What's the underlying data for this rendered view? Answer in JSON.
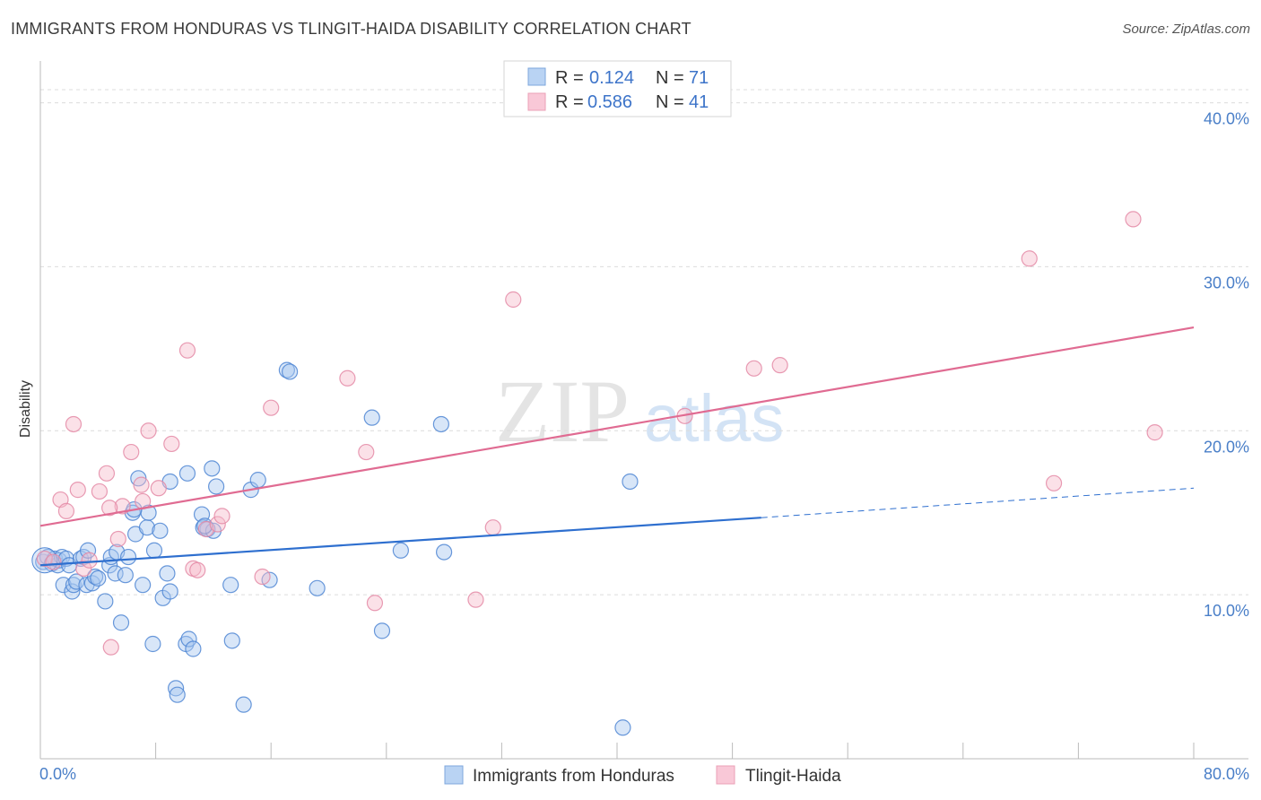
{
  "header": {
    "title": "IMMIGRANTS FROM HONDURAS VS TLINGIT-HAIDA DISABILITY CORRELATION CHART",
    "source": "Source: ZipAtlas.com"
  },
  "watermark": {
    "zip": "ZIP",
    "atlas": "atlas"
  },
  "colors": {
    "series1_fill": "#a9c8f0",
    "series1_stroke": "#4f86d4",
    "series1_line": "#2e6fcf",
    "series2_fill": "#f7bccd",
    "series2_stroke": "#e48aa6",
    "series2_line": "#e06b92",
    "tick_label": "#4a7fc8",
    "grid": "#dcdcdc"
  },
  "legend": {
    "rows": [
      {
        "r_label": "R =",
        "r_value": "0.124",
        "n_label": "N =",
        "n_value": "71"
      },
      {
        "r_label": "R =",
        "r_value": "0.586",
        "n_label": "N =",
        "n_value": "41"
      }
    ]
  },
  "bottom_legend": {
    "series1": "Immigrants from Honduras",
    "series2": "Tlingit-Haida"
  },
  "chart_data": {
    "type": "scatter",
    "title": "IMMIGRANTS FROM HONDURAS VS TLINGIT-HAIDA DISABILITY CORRELATION CHART",
    "xlabel": "",
    "ylabel": "Disability",
    "xlim": [
      0,
      80
    ],
    "ylim": [
      0,
      42
    ],
    "x_tick_labels": [
      "0.0%",
      "80.0%"
    ],
    "y_ticks": [
      10,
      20,
      30,
      40
    ],
    "y_tick_labels": [
      "10.0%",
      "20.0%",
      "30.0%",
      "40.0%"
    ],
    "grid": true,
    "legend_position": "top-center",
    "series": [
      {
        "name": "Immigrants from Honduras",
        "r": 0.124,
        "n": 71,
        "trend": {
          "x0": 0,
          "y0": 11.8,
          "x1": 50,
          "y1": 14.7,
          "dashed_to_x": 80,
          "dashed_to_y": 16.5
        },
        "points": [
          [
            0.2,
            12.0
          ],
          [
            0.5,
            12.3
          ],
          [
            0.8,
            11.9
          ],
          [
            1.0,
            12.2
          ],
          [
            1.2,
            11.8
          ],
          [
            1.3,
            12.1
          ],
          [
            1.5,
            12.3
          ],
          [
            1.6,
            10.6
          ],
          [
            1.8,
            12.2
          ],
          [
            2.0,
            11.8
          ],
          [
            2.2,
            10.2
          ],
          [
            2.3,
            10.6
          ],
          [
            2.5,
            10.8
          ],
          [
            2.8,
            12.2
          ],
          [
            3.0,
            12.3
          ],
          [
            3.2,
            10.6
          ],
          [
            3.3,
            12.7
          ],
          [
            3.6,
            10.7
          ],
          [
            3.8,
            11.1
          ],
          [
            4.0,
            11.0
          ],
          [
            4.5,
            9.6
          ],
          [
            4.8,
            11.8
          ],
          [
            4.9,
            12.3
          ],
          [
            5.2,
            11.3
          ],
          [
            5.3,
            12.6
          ],
          [
            5.6,
            8.3
          ],
          [
            5.9,
            11.2
          ],
          [
            6.1,
            12.3
          ],
          [
            6.4,
            15.0
          ],
          [
            6.6,
            13.7
          ],
          [
            6.8,
            17.1
          ],
          [
            7.1,
            10.6
          ],
          [
            7.4,
            14.1
          ],
          [
            7.5,
            15.0
          ],
          [
            7.8,
            7.0
          ],
          [
            7.9,
            12.7
          ],
          [
            8.3,
            13.9
          ],
          [
            8.5,
            9.8
          ],
          [
            8.8,
            11.3
          ],
          [
            9.0,
            10.2
          ],
          [
            9.0,
            16.9
          ],
          [
            9.4,
            4.3
          ],
          [
            9.5,
            3.9
          ],
          [
            10.1,
            7.0
          ],
          [
            10.2,
            17.4
          ],
          [
            10.3,
            7.3
          ],
          [
            10.6,
            6.7
          ],
          [
            11.2,
            14.9
          ],
          [
            11.3,
            14.1
          ],
          [
            11.6,
            14.0
          ],
          [
            11.9,
            17.7
          ],
          [
            12.0,
            13.9
          ],
          [
            12.2,
            16.6
          ],
          [
            13.2,
            10.6
          ],
          [
            13.3,
            7.2
          ],
          [
            14.1,
            3.3
          ],
          [
            14.6,
            16.4
          ],
          [
            15.1,
            17.0
          ],
          [
            15.9,
            10.9
          ],
          [
            17.1,
            23.7
          ],
          [
            17.3,
            23.6
          ],
          [
            19.2,
            10.4
          ],
          [
            23.0,
            20.8
          ],
          [
            23.7,
            7.8
          ],
          [
            25.0,
            12.7
          ],
          [
            27.8,
            20.4
          ],
          [
            28.0,
            12.6
          ],
          [
            40.9,
            16.9
          ],
          [
            40.4,
            1.9
          ],
          [
            11.4,
            14.2
          ],
          [
            6.5,
            15.2
          ]
        ]
      },
      {
        "name": "Tlingit-Haida",
        "r": 0.586,
        "n": 41,
        "trend": {
          "x0": 0,
          "y0": 14.2,
          "x1": 80,
          "y1": 26.3
        },
        "points": [
          [
            0.3,
            12.2
          ],
          [
            0.9,
            12.0
          ],
          [
            1.4,
            15.8
          ],
          [
            1.8,
            15.1
          ],
          [
            2.3,
            20.4
          ],
          [
            2.6,
            16.4
          ],
          [
            3.0,
            11.6
          ],
          [
            3.4,
            12.1
          ],
          [
            4.1,
            16.3
          ],
          [
            4.6,
            17.4
          ],
          [
            4.9,
            6.8
          ],
          [
            5.4,
            13.4
          ],
          [
            5.7,
            15.4
          ],
          [
            6.3,
            18.7
          ],
          [
            7.0,
            16.7
          ],
          [
            7.1,
            15.7
          ],
          [
            7.5,
            20.0
          ],
          [
            8.2,
            16.5
          ],
          [
            9.1,
            19.2
          ],
          [
            10.2,
            24.9
          ],
          [
            10.6,
            11.6
          ],
          [
            10.9,
            11.5
          ],
          [
            11.5,
            14.0
          ],
          [
            12.3,
            14.3
          ],
          [
            12.6,
            14.8
          ],
          [
            15.4,
            11.1
          ],
          [
            16.0,
            21.4
          ],
          [
            21.3,
            23.2
          ],
          [
            22.6,
            18.7
          ],
          [
            23.2,
            9.5
          ],
          [
            30.2,
            9.7
          ],
          [
            31.4,
            14.1
          ],
          [
            32.8,
            28.0
          ],
          [
            44.7,
            20.9
          ],
          [
            49.5,
            23.8
          ],
          [
            51.3,
            24.0
          ],
          [
            68.6,
            30.5
          ],
          [
            70.3,
            16.8
          ],
          [
            75.8,
            32.9
          ],
          [
            77.3,
            19.9
          ],
          [
            4.8,
            15.3
          ]
        ]
      }
    ]
  }
}
